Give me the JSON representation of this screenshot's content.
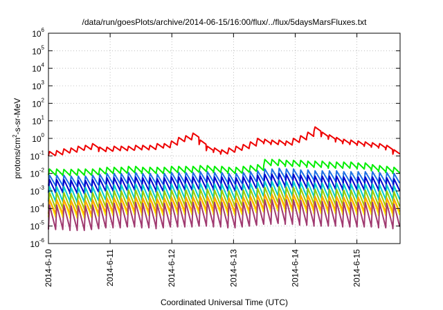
{
  "chart_data": {
    "type": "line",
    "title": "/data/run/goesPlots/archive/2014-06-15/16:00/flux/../flux/5daysMarsFluxes.txt",
    "xlabel": "Coordinated Universal Time (UTC)",
    "ylabel": {
      "prefix": "protons/cm",
      "sup": "2",
      "suffix": "-s-sr-MeV"
    },
    "yscale": "log",
    "ylim_exp": [
      -6,
      6
    ],
    "y_tick_exponents": [
      -6,
      -5,
      -4,
      -3,
      -2,
      -1,
      0,
      1,
      2,
      3,
      4,
      5,
      6
    ],
    "y_tick_base": "10",
    "xlim_days": [
      0,
      5.7
    ],
    "x_tick_labels": [
      "2014-6-10",
      "2014-6-11",
      "2014-6-12",
      "2014-6-13",
      "2014-6-14",
      "2014-6-15"
    ],
    "grid": true,
    "legend": "none",
    "series": [
      {
        "color": "#ee0000",
        "min": [
          -1.0,
          -0.95,
          -0.85,
          -0.8,
          -0.7,
          -0.65,
          -0.55,
          -0.75,
          -0.75,
          -0.7,
          -0.7,
          -0.7,
          -0.65,
          -0.65,
          -0.65,
          -0.55,
          -0.55,
          -0.4,
          -0.2,
          -0.1,
          0.05,
          -0.35,
          -0.7,
          -0.8,
          -0.9,
          -0.8,
          -0.7,
          -0.6,
          -0.45,
          -0.25,
          -0.3,
          -0.35,
          -0.35,
          -0.4,
          -0.25,
          -0.1,
          0.1,
          0.4,
          0.1,
          -0.05,
          -0.2,
          -0.3,
          -0.35,
          -0.4,
          -0.45,
          -0.5,
          -0.55,
          -0.65,
          -0.9
        ],
        "amp": 0.25
      },
      {
        "color": "#00ee00",
        "min": [
          -2.1,
          -2.1,
          -2.12,
          -2.12,
          -2.1,
          -2.1,
          -2.1,
          -2.05,
          -2.0,
          -2.0,
          -2.0,
          -1.95,
          -1.95,
          -2.0,
          -2.0,
          -2.0,
          -2.0,
          -1.95,
          -1.95,
          -1.95,
          -1.95,
          -1.9,
          -1.9,
          -1.95,
          -1.95,
          -2.0,
          -2.0,
          -1.95,
          -1.9,
          -1.85,
          -1.55,
          -1.55,
          -1.55,
          -1.6,
          -1.6,
          -1.6,
          -1.65,
          -1.65,
          -1.65,
          -1.7,
          -1.7,
          -1.7,
          -1.7,
          -1.75,
          -1.75,
          -1.85,
          -1.9,
          -1.95,
          -2.0
        ],
        "amp": 0.35
      },
      {
        "color": "#1c6fe6",
        "min": [
          -2.7,
          -2.7,
          -2.7,
          -2.75,
          -2.75,
          -2.75,
          -2.7,
          -2.65,
          -2.6,
          -2.6,
          -2.6,
          -2.55,
          -2.55,
          -2.6,
          -2.6,
          -2.65,
          -2.6,
          -2.55,
          -2.55,
          -2.55,
          -2.55,
          -2.5,
          -2.5,
          -2.55,
          -2.55,
          -2.6,
          -2.6,
          -2.55,
          -2.5,
          -2.45,
          -2.35,
          -2.35,
          -2.3,
          -2.35,
          -2.35,
          -2.4,
          -2.4,
          -2.45,
          -2.45,
          -2.45,
          -2.45,
          -2.5,
          -2.5,
          -2.5,
          -2.5,
          -2.5,
          -2.55,
          -2.55,
          -2.6
        ],
        "amp": 0.6
      },
      {
        "color": "#0000cc",
        "min": [
          -3.1,
          -3.1,
          -3.1,
          -3.15,
          -3.15,
          -3.15,
          -3.1,
          -3.05,
          -3.0,
          -3.0,
          -3.0,
          -2.95,
          -2.95,
          -3.0,
          -3.0,
          -3.05,
          -3.0,
          -2.95,
          -2.95,
          -2.95,
          -2.95,
          -2.9,
          -2.9,
          -2.95,
          -2.95,
          -3.0,
          -3.0,
          -2.95,
          -2.9,
          -2.85,
          -2.8,
          -2.8,
          -2.75,
          -2.8,
          -2.8,
          -2.85,
          -2.85,
          -2.9,
          -2.9,
          -2.9,
          -2.9,
          -2.95,
          -2.95,
          -2.95,
          -2.95,
          -2.95,
          -3.0,
          -3.0,
          -3.05
        ],
        "amp": 0.75
      },
      {
        "color": "#00cccc",
        "min": [
          -3.6,
          -3.6,
          -3.6,
          -3.65,
          -3.65,
          -3.65,
          -3.6,
          -3.55,
          -3.5,
          -3.5,
          -3.5,
          -3.45,
          -3.45,
          -3.5,
          -3.5,
          -3.55,
          -3.5,
          -3.45,
          -3.45,
          -3.45,
          -3.45,
          -3.4,
          -3.4,
          -3.45,
          -3.45,
          -3.5,
          -3.5,
          -3.45,
          -3.4,
          -3.35,
          -3.3,
          -3.3,
          -3.25,
          -3.3,
          -3.3,
          -3.35,
          -3.35,
          -3.4,
          -3.4,
          -3.4,
          -3.4,
          -3.45,
          -3.45,
          -3.45,
          -3.45,
          -3.45,
          -3.5,
          -3.5,
          -3.55
        ],
        "amp": 0.85
      },
      {
        "color": "#99cc00",
        "min": [
          -4.0,
          -4.0,
          -4.0,
          -4.05,
          -4.05,
          -4.05,
          -4.0,
          -3.95,
          -3.9,
          -3.9,
          -3.9,
          -3.85,
          -3.85,
          -3.9,
          -3.9,
          -3.95,
          -3.9,
          -3.85,
          -3.85,
          -3.85,
          -3.85,
          -3.8,
          -3.8,
          -3.85,
          -3.85,
          -3.9,
          -3.9,
          -3.85,
          -3.8,
          -3.75,
          -3.7,
          -3.7,
          -3.65,
          -3.7,
          -3.7,
          -3.75,
          -3.75,
          -3.8,
          -3.8,
          -3.8,
          -3.8,
          -3.85,
          -3.85,
          -3.85,
          -3.85,
          -3.85,
          -3.9,
          -3.9,
          -3.95
        ],
        "amp": 0.9
      },
      {
        "color": "#ffff00",
        "min": [
          -4.5,
          -4.5,
          -4.5,
          -4.55,
          -4.55,
          -4.55,
          -4.5,
          -4.45,
          -4.4,
          -4.4,
          -4.4,
          -4.35,
          -4.35,
          -4.4,
          -4.4,
          -4.45,
          -4.4,
          -4.35,
          -4.35,
          -4.35,
          -4.35,
          -4.3,
          -4.3,
          -4.35,
          -4.35,
          -4.4,
          -4.4,
          -4.35,
          -4.3,
          -4.25,
          -4.2,
          -4.2,
          -4.15,
          -4.2,
          -4.2,
          -4.25,
          -4.25,
          -4.3,
          -4.3,
          -4.3,
          -4.3,
          -4.35,
          -4.35,
          -4.35,
          -4.35,
          -4.35,
          -4.4,
          -4.4,
          -4.45
        ],
        "amp": 1.0
      },
      {
        "color": "#ffa500",
        "min": [
          -4.3,
          -4.3,
          -4.3,
          -4.35,
          -4.35,
          -4.35,
          -4.3,
          -4.25,
          -4.2,
          -4.2,
          -4.2,
          -4.15,
          -4.15,
          -4.2,
          -4.2,
          -4.25,
          -4.2,
          -4.15,
          -4.15,
          -4.15,
          -4.15,
          -4.1,
          -4.1,
          -4.15,
          -4.15,
          -4.2,
          -4.2,
          -4.15,
          -4.1,
          -4.05,
          -4.0,
          -4.0,
          -3.95,
          -4.0,
          -4.0,
          -4.05,
          -4.05,
          -4.1,
          -4.1,
          -4.1,
          -4.1,
          -4.15,
          -4.15,
          -4.15,
          -4.15,
          -4.15,
          -4.2,
          -4.2,
          -4.25
        ],
        "amp": 0.8
      },
      {
        "color": "#a03a70",
        "min": [
          -5.2,
          -5.2,
          -5.2,
          -5.25,
          -5.25,
          -5.25,
          -5.2,
          -5.15,
          -5.1,
          -5.1,
          -5.1,
          -5.05,
          -5.05,
          -5.1,
          -5.1,
          -5.15,
          -5.1,
          -5.05,
          -5.05,
          -5.05,
          -5.05,
          -5.0,
          -5.0,
          -5.05,
          -5.05,
          -5.1,
          -5.1,
          -5.05,
          -5.0,
          -4.95,
          -4.9,
          -4.9,
          -4.85,
          -4.9,
          -4.9,
          -4.95,
          -4.95,
          -5.0,
          -5.0,
          -5.0,
          -5.0,
          -5.05,
          -5.05,
          -5.05,
          -5.05,
          -5.05,
          -5.1,
          -5.1,
          -5.15
        ],
        "amp": 1.4
      }
    ]
  }
}
